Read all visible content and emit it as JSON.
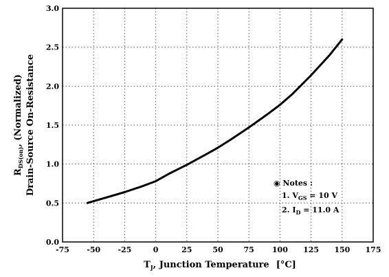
{
  "chart_data": {
    "type": "line",
    "x": [
      -55,
      -40,
      -25,
      -10,
      0,
      10,
      25,
      40,
      50,
      60,
      75,
      90,
      100,
      110,
      125,
      140,
      150
    ],
    "series": [
      {
        "values": [
          0.5,
          0.57,
          0.64,
          0.72,
          0.78,
          0.87,
          0.99,
          1.12,
          1.21,
          1.31,
          1.47,
          1.64,
          1.76,
          1.9,
          2.14,
          2.4,
          2.6
        ]
      }
    ],
    "xlim": [
      -75,
      175
    ],
    "ylim": [
      0.0,
      3.0
    ],
    "xticks": [
      -75,
      -50,
      -25,
      0,
      25,
      50,
      75,
      100,
      125,
      150,
      175
    ],
    "yticks": [
      "0.0",
      "0.5",
      "1.0",
      "1.5",
      "2.0",
      "2.5",
      "3.0"
    ],
    "grid": true,
    "line_color": "#000000",
    "xlabel": {
      "symbol": "T",
      "symbol_sub": "J",
      "text": ", Junction Temperature",
      "unit": "[°C]"
    },
    "ylabel": {
      "symbol": "R",
      "symbol_sub": "DS(on)",
      "line1_suffix": ",  (Normalized)",
      "line2": "Drain-Source On-Resistance"
    },
    "notes": {
      "title": "◉ Notes :",
      "items": [
        {
          "prefix": "1. V",
          "sub": "GS",
          "suffix": " = 10 V"
        },
        {
          "prefix": "2. I",
          "sub": "D",
          "suffix": " = 11.0 A"
        }
      ]
    }
  }
}
